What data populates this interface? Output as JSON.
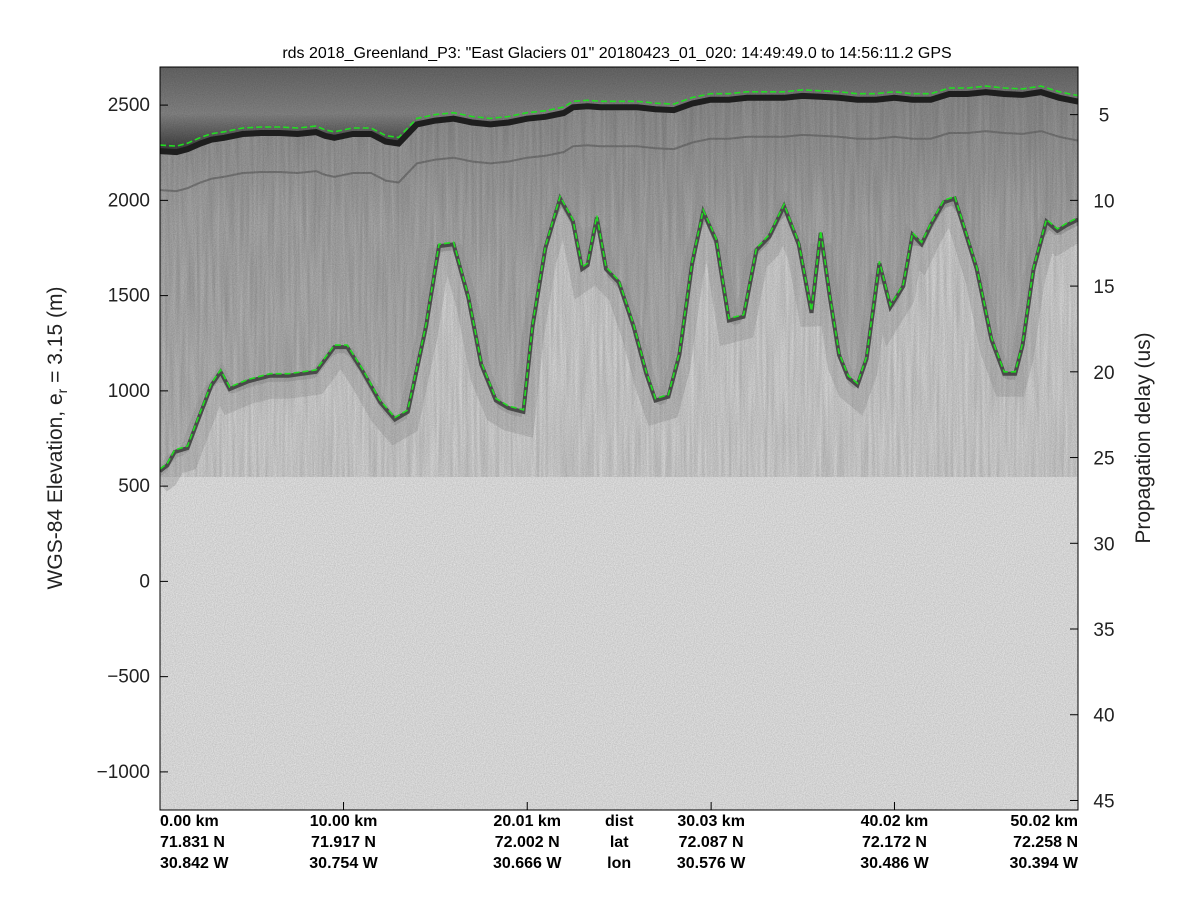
{
  "chart_data": {
    "type": "line",
    "title": "rds 2018_Greenland_P3: \"East Glaciers 01\"  20180423_01_020: 14:49:49.0 to 14:56:11.2 GPS",
    "ylabel_main": "WGS-84 Elevation, e",
    "ylabel_sub": "r",
    "ylabel_rest": " = 3.15 (m)",
    "y2label": "Propagation delay (us)",
    "x_range": [
      0,
      50.02
    ],
    "ylim": [
      -1200,
      2700
    ],
    "yticks": [
      2500,
      2000,
      1500,
      1000,
      500,
      0,
      -500,
      -1000
    ],
    "ytick_labels": [
      "2500",
      "2000",
      "1500",
      "1000",
      "500",
      "0",
      "−500",
      "−1000"
    ],
    "y2ticks": [
      {
        "label": "5",
        "elev": 2450
      },
      {
        "label": "10",
        "elev": 2000
      },
      {
        "label": "15",
        "elev": 1550
      },
      {
        "label": "20",
        "elev": 1100
      },
      {
        "label": "25",
        "elev": 650
      },
      {
        "label": "30",
        "elev": 200
      },
      {
        "label": "35",
        "elev": -250
      },
      {
        "label": "40",
        "elev": -700
      },
      {
        "label": "45",
        "elev": -1150
      }
    ],
    "grid": false,
    "x_annotations": [
      {
        "x": 0.0,
        "dist": "0.00 km",
        "lat": "71.831 N",
        "lon": "30.842 W",
        "anchor": "start"
      },
      {
        "x": 10.0,
        "dist": "10.00 km",
        "lat": "71.917 N",
        "lon": "30.754 W",
        "anchor": "middle"
      },
      {
        "x": 20.01,
        "dist": "20.01 km",
        "lat": "72.002 N",
        "lon": "30.666 W",
        "anchor": "middle"
      },
      {
        "x": 30.03,
        "dist": "30.03 km",
        "lat": "72.087 N",
        "lon": "30.576 W",
        "anchor": "middle"
      },
      {
        "x": 40.02,
        "dist": "40.02 km",
        "lat": "72.172 N",
        "lon": "30.486 W",
        "anchor": "middle"
      },
      {
        "x": 50.02,
        "dist": "50.02 km",
        "lat": "72.258 N",
        "lon": "30.394 W",
        "anchor": "end"
      }
    ],
    "row_names": {
      "dist": "dist",
      "lat": "lat",
      "lon": "lon"
    },
    "colors": {
      "layer": "#22dd22",
      "background": "#ececec"
    },
    "series": [
      {
        "x": [
          0,
          0.9,
          1.5,
          2.2,
          2.8,
          3.5,
          4.5,
          5.5,
          6.5,
          7.5,
          8.5,
          9.0,
          9.5,
          10.5,
          11.5,
          12.3,
          13.0,
          14.0,
          15.0,
          16.0,
          17.0,
          18.0,
          19.0,
          20.0,
          21.0,
          22.0,
          22.5,
          23.3,
          24.0,
          25.0,
          26.0,
          27.0,
          28.0,
          29.0,
          30.0,
          31.0,
          32.0,
          33.0,
          34.0,
          35.0,
          36.0,
          37.0,
          38.0,
          39.0,
          40.0,
          41.0,
          42.0,
          43.0,
          44.0,
          45.0,
          46.0,
          47.0,
          48.0,
          49.0,
          50.02
        ],
        "y": [
          2290,
          2285,
          2300,
          2330,
          2350,
          2360,
          2380,
          2385,
          2385,
          2380,
          2390,
          2370,
          2360,
          2380,
          2380,
          2340,
          2330,
          2430,
          2450,
          2460,
          2440,
          2430,
          2440,
          2460,
          2470,
          2490,
          2520,
          2525,
          2520,
          2520,
          2520,
          2510,
          2505,
          2540,
          2560,
          2560,
          2570,
          2570,
          2570,
          2580,
          2575,
          2570,
          2560,
          2560,
          2570,
          2560,
          2560,
          2590,
          2590,
          2600,
          2590,
          2585,
          2600,
          2570,
          2550
        ]
      },
      {
        "x": [
          0,
          0.4,
          0.8,
          1.5,
          2.0,
          2.8,
          3.3,
          3.8,
          4.8,
          6.0,
          7.0,
          8.5,
          9.5,
          10.2,
          11.0,
          12.0,
          12.8,
          13.5,
          14.5,
          15.2,
          16.0,
          16.8,
          17.5,
          18.3,
          19.0,
          19.8,
          20.3,
          21.0,
          21.8,
          22.5,
          23.0,
          23.3,
          23.8,
          24.3,
          25.0,
          25.8,
          26.5,
          27.0,
          27.7,
          28.3,
          29.0,
          29.6,
          30.3,
          31.0,
          31.8,
          32.5,
          33.2,
          34.0,
          34.8,
          35.5,
          36.0,
          36.5,
          37.0,
          37.5,
          38.0,
          38.5,
          39.2,
          39.8,
          40.5,
          41.0,
          41.5,
          42.0,
          42.7,
          43.3,
          43.8,
          44.5,
          45.3,
          46.0,
          46.6,
          47.0,
          47.6,
          48.3,
          48.9,
          49.4,
          50.02
        ],
        "y": [
          590,
          620,
          690,
          710,
          840,
          1040,
          1110,
          1020,
          1060,
          1090,
          1090,
          1110,
          1240,
          1240,
          1120,
          950,
          860,
          900,
          1350,
          1770,
          1780,
          1500,
          1150,
          960,
          920,
          900,
          1350,
          1760,
          2020,
          1900,
          1650,
          1670,
          1920,
          1650,
          1580,
          1350,
          1100,
          960,
          980,
          1200,
          1680,
          1950,
          1800,
          1380,
          1400,
          1750,
          1820,
          1980,
          1780,
          1420,
          1840,
          1500,
          1200,
          1080,
          1040,
          1180,
          1680,
          1450,
          1560,
          1830,
          1780,
          1880,
          2000,
          2020,
          1870,
          1650,
          1280,
          1100,
          1100,
          1250,
          1650,
          1900,
          1850,
          1880,
          1910
        ]
      }
    ]
  }
}
